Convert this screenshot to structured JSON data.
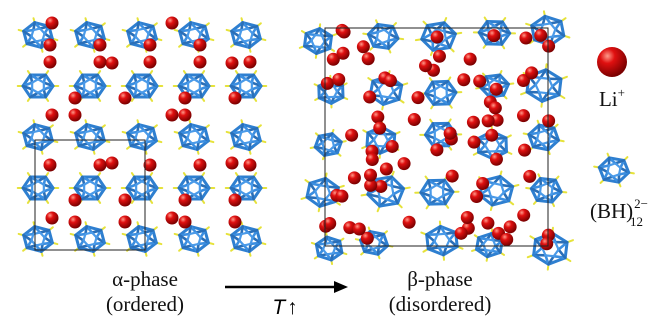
{
  "left_label": {
    "title": "α-phase",
    "subtitle": "(ordered)"
  },
  "transition": {
    "symbol": "T",
    "arrow": "↑"
  },
  "right_label": {
    "title": "β-phase",
    "subtitle": "(disordered)"
  },
  "legend": {
    "li": {
      "base": "Li",
      "charge": "+"
    },
    "cluster": {
      "base": "(BH)",
      "subscript": "12",
      "charge": "2−"
    }
  }
}
